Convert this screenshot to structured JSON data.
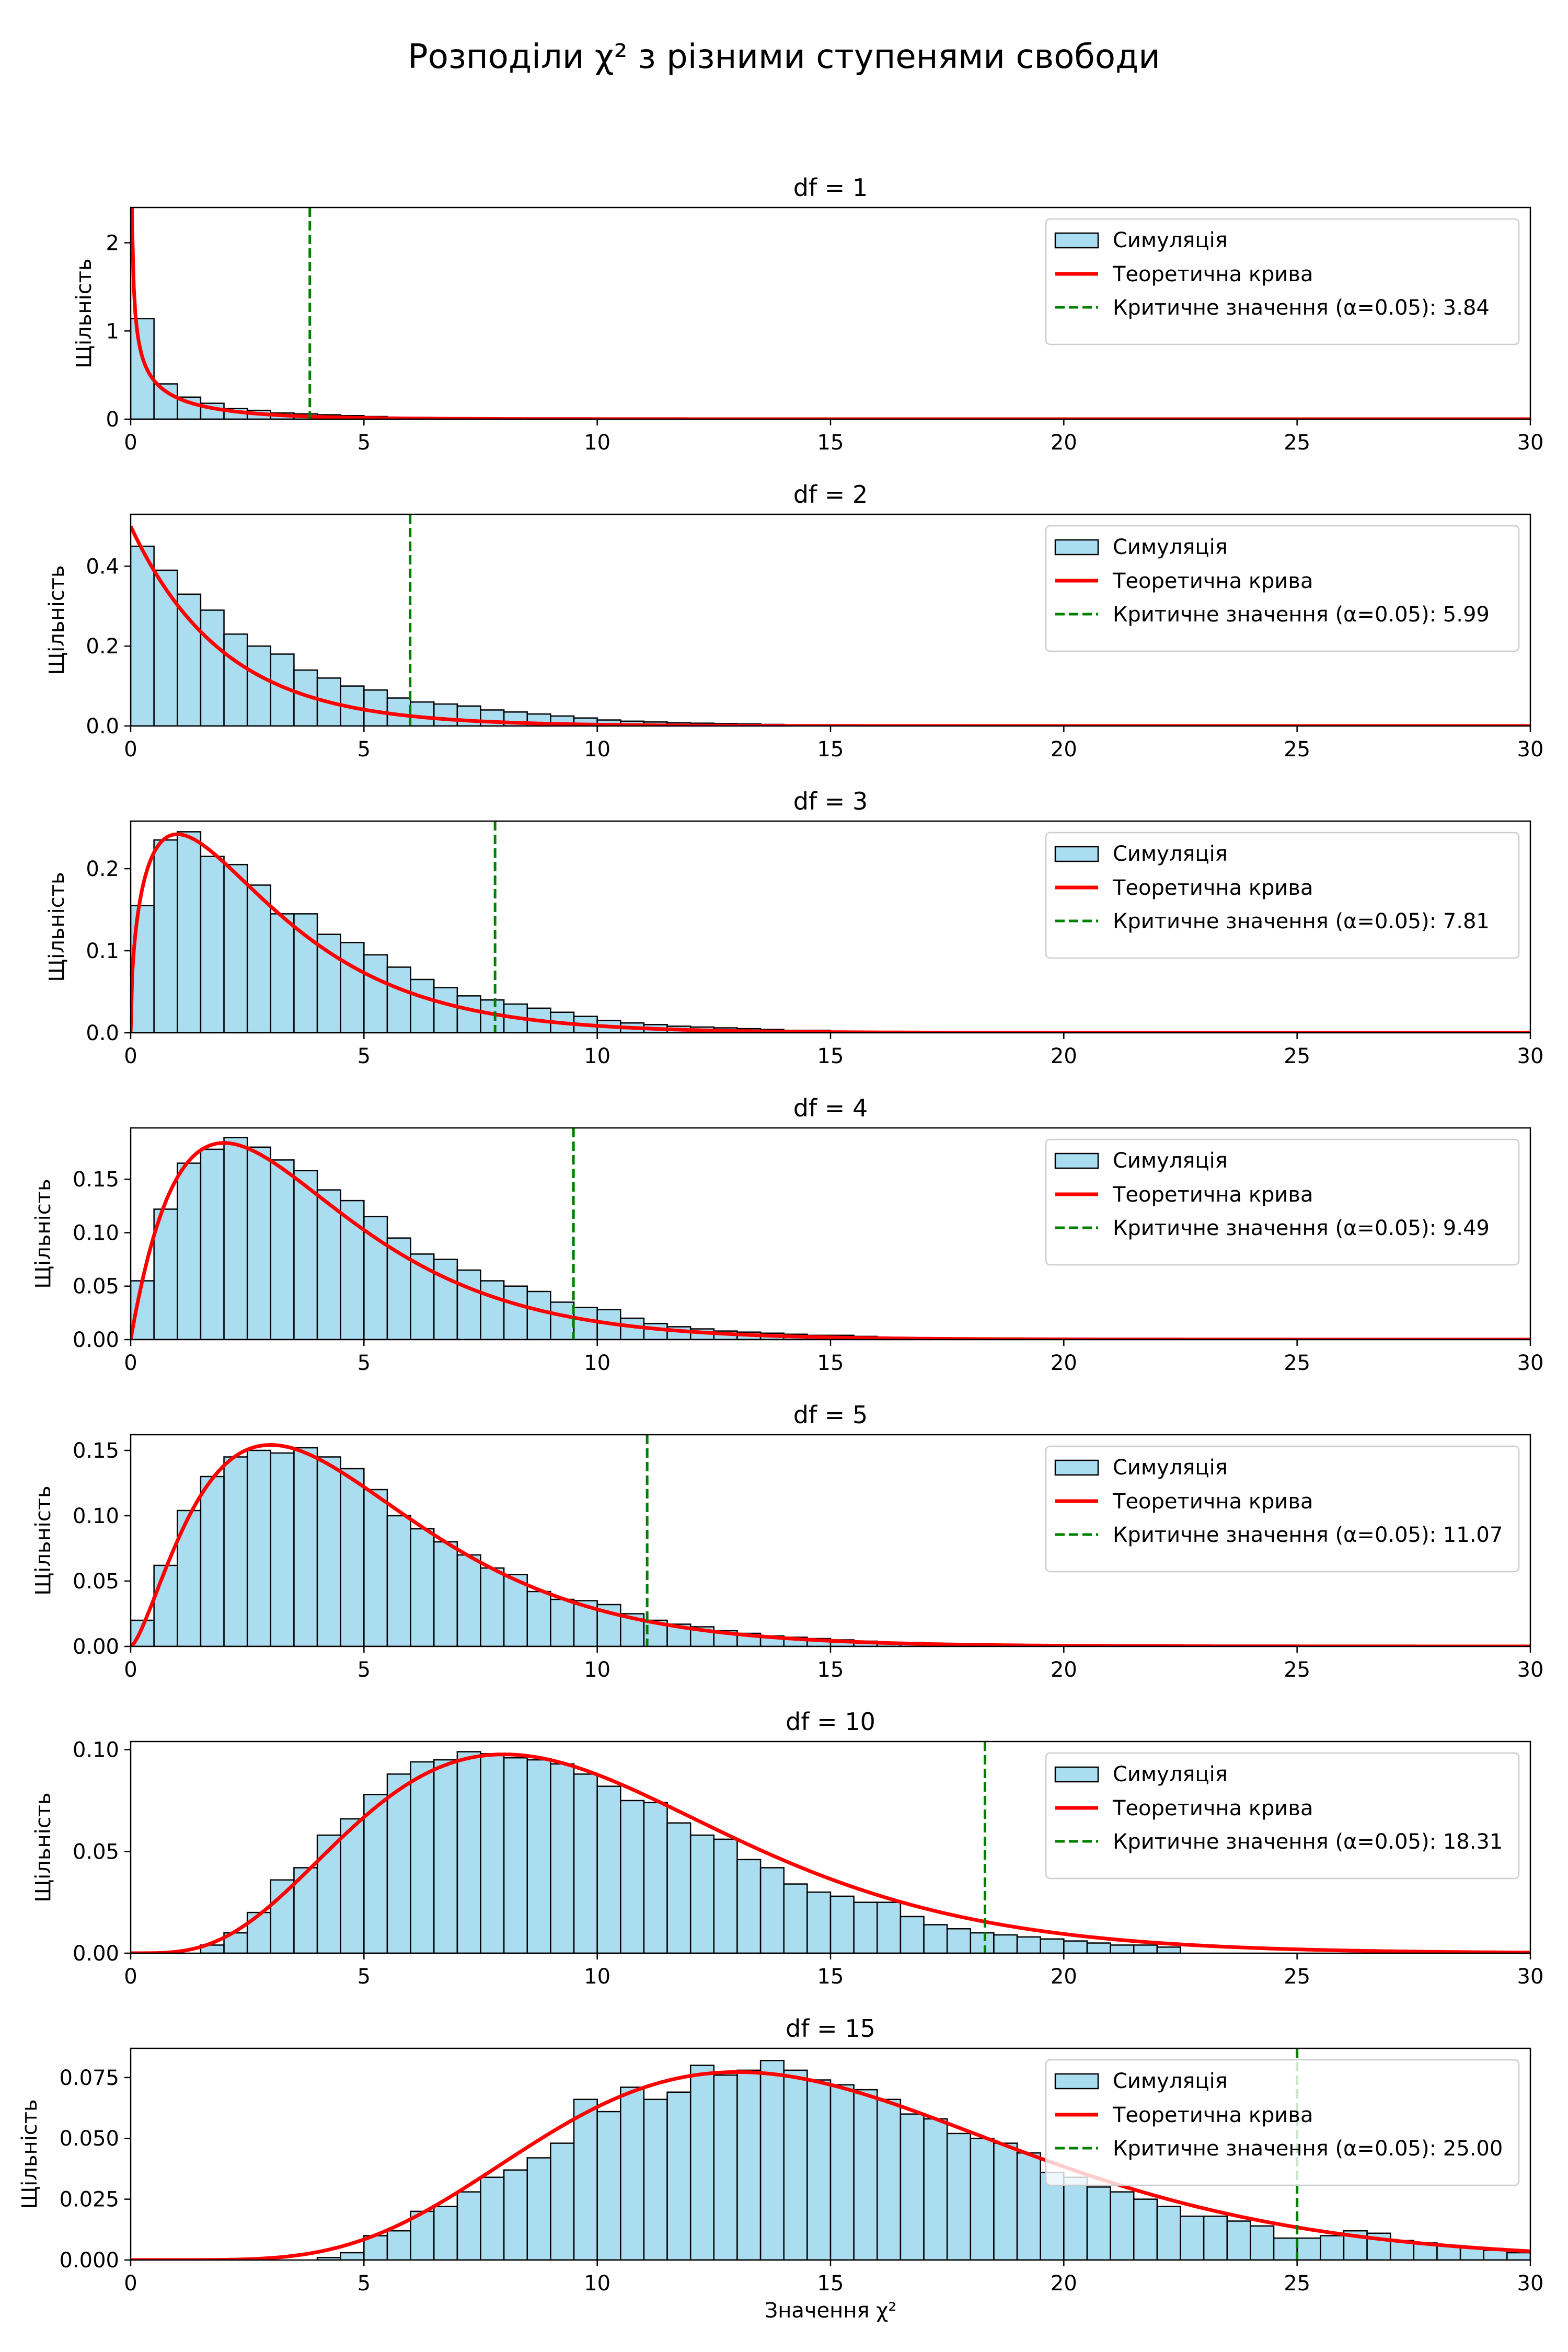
{
  "figure": {
    "title": "Розподіли χ² з різними ступенями свободи"
  },
  "colors": {
    "hist_fill": "#87ceeb",
    "hist_edge": "#000000",
    "pdf_line": "#ff0000",
    "critical_line": "#008000"
  },
  "legend_labels": {
    "simulation": "Симуляція",
    "theory": "Теоретична крива",
    "critical_prefix": "Критичне значення (α=0.05): "
  },
  "chart_data": [
    {
      "type": "bar",
      "title": "df = 1",
      "df": 1,
      "xlabel": "",
      "ylabel": "Щільність",
      "xlim": [
        0,
        30
      ],
      "ylim": [
        0,
        2.4
      ],
      "x_ticks": [
        0,
        5,
        10,
        15,
        20,
        25,
        30
      ],
      "y_ticks": [
        "0",
        "1",
        "2"
      ],
      "y_tick_values": [
        0,
        1,
        2
      ],
      "critical_value": 3.84,
      "critical_label": "3.84",
      "legend_position": "top-right",
      "grid": false,
      "bin_width": 0.5,
      "hist_values": [
        1.14,
        0.4,
        0.25,
        0.18,
        0.12,
        0.1,
        0.07,
        0.06,
        0.05,
        0.04,
        0.03,
        0.02,
        0.02,
        0.015,
        0.01,
        0.01,
        0.01,
        0.005,
        0.005,
        0.004
      ]
    },
    {
      "type": "bar",
      "title": "df = 2",
      "df": 2,
      "xlabel": "",
      "ylabel": "Щільність",
      "xlim": [
        0,
        30
      ],
      "ylim": [
        0,
        0.53
      ],
      "x_ticks": [
        0,
        5,
        10,
        15,
        20,
        25,
        30
      ],
      "y_ticks": [
        "0.0",
        "0.2",
        "0.4"
      ],
      "y_tick_values": [
        0,
        0.2,
        0.4
      ],
      "critical_value": 5.99,
      "critical_label": "5.99",
      "legend_position": "top-right",
      "grid": false,
      "bin_width": 0.5,
      "hist_values": [
        0.45,
        0.39,
        0.33,
        0.29,
        0.23,
        0.2,
        0.18,
        0.14,
        0.12,
        0.1,
        0.09,
        0.07,
        0.06,
        0.055,
        0.05,
        0.04,
        0.035,
        0.03,
        0.025,
        0.02,
        0.015,
        0.012,
        0.01,
        0.008,
        0.007,
        0.006,
        0.005,
        0.004
      ]
    },
    {
      "type": "bar",
      "title": "df = 3",
      "df": 3,
      "xlabel": "",
      "ylabel": "Щільність",
      "xlim": [
        0,
        30
      ],
      "ylim": [
        0,
        0.258
      ],
      "x_ticks": [
        0,
        5,
        10,
        15,
        20,
        25,
        30
      ],
      "y_ticks": [
        "0.0",
        "0.1",
        "0.2"
      ],
      "y_tick_values": [
        0,
        0.1,
        0.2
      ],
      "critical_value": 7.81,
      "critical_label": "7.81",
      "legend_position": "top-right",
      "grid": false,
      "bin_width": 0.5,
      "hist_values": [
        0.155,
        0.235,
        0.245,
        0.215,
        0.205,
        0.18,
        0.145,
        0.145,
        0.12,
        0.11,
        0.095,
        0.08,
        0.065,
        0.055,
        0.045,
        0.04,
        0.035,
        0.03,
        0.025,
        0.02,
        0.015,
        0.012,
        0.01,
        0.008,
        0.007,
        0.006,
        0.005,
        0.004,
        0.003,
        0.003
      ]
    },
    {
      "type": "bar",
      "title": "df = 4",
      "df": 4,
      "xlabel": "",
      "ylabel": "Щільність",
      "xlim": [
        0,
        30
      ],
      "ylim": [
        0,
        0.198
      ],
      "x_ticks": [
        0,
        5,
        10,
        15,
        20,
        25,
        30
      ],
      "y_ticks": [
        "0.00",
        "0.05",
        "0.10",
        "0.15"
      ],
      "y_tick_values": [
        0,
        0.05,
        0.1,
        0.15
      ],
      "critical_value": 9.49,
      "critical_label": "9.49",
      "legend_position": "top-right",
      "grid": false,
      "bin_width": 0.5,
      "hist_values": [
        0.055,
        0.122,
        0.165,
        0.178,
        0.189,
        0.18,
        0.168,
        0.158,
        0.14,
        0.13,
        0.115,
        0.095,
        0.08,
        0.075,
        0.065,
        0.055,
        0.05,
        0.045,
        0.035,
        0.03,
        0.028,
        0.02,
        0.015,
        0.012,
        0.01,
        0.008,
        0.007,
        0.006,
        0.005,
        0.004,
        0.004,
        0.003
      ]
    },
    {
      "type": "bar",
      "title": "df = 5",
      "df": 5,
      "xlabel": "",
      "ylabel": "Щільність",
      "xlim": [
        0,
        30
      ],
      "ylim": [
        0,
        0.162
      ],
      "x_ticks": [
        0,
        5,
        10,
        15,
        20,
        25,
        30
      ],
      "y_ticks": [
        "0.00",
        "0.05",
        "0.10",
        "0.15"
      ],
      "y_tick_values": [
        0,
        0.05,
        0.1,
        0.15
      ],
      "critical_value": 11.07,
      "critical_label": "11.07",
      "legend_position": "top-right",
      "grid": false,
      "bin_width": 0.5,
      "hist_values": [
        0.02,
        0.062,
        0.104,
        0.13,
        0.145,
        0.15,
        0.148,
        0.152,
        0.145,
        0.136,
        0.12,
        0.1,
        0.09,
        0.08,
        0.07,
        0.06,
        0.055,
        0.042,
        0.036,
        0.035,
        0.032,
        0.025,
        0.02,
        0.017,
        0.015,
        0.012,
        0.01,
        0.008,
        0.007,
        0.006,
        0.005,
        0.004,
        0.003,
        0.003,
        0.002
      ]
    },
    {
      "type": "bar",
      "title": "df = 10",
      "df": 10,
      "xlabel": "",
      "ylabel": "Щільність",
      "xlim": [
        0,
        30
      ],
      "ylim": [
        0,
        0.104
      ],
      "x_ticks": [
        0,
        5,
        10,
        15,
        20,
        25,
        30
      ],
      "y_ticks": [
        "0.00",
        "0.05",
        "0.10"
      ],
      "y_tick_values": [
        0,
        0.05,
        0.1
      ],
      "critical_value": 18.31,
      "critical_label": "18.31",
      "legend_position": "top-right",
      "grid": false,
      "bin_width": 0.5,
      "hist_values": [
        0.0,
        0.0,
        0.0,
        0.004,
        0.01,
        0.02,
        0.036,
        0.042,
        0.058,
        0.066,
        0.078,
        0.088,
        0.094,
        0.095,
        0.099,
        0.098,
        0.096,
        0.095,
        0.093,
        0.088,
        0.082,
        0.075,
        0.074,
        0.064,
        0.058,
        0.056,
        0.046,
        0.042,
        0.034,
        0.03,
        0.028,
        0.025,
        0.025,
        0.018,
        0.014,
        0.012,
        0.01,
        0.009,
        0.008,
        0.007,
        0.006,
        0.005,
        0.004,
        0.004,
        0.003
      ]
    },
    {
      "type": "bar",
      "title": "df = 15",
      "df": 15,
      "xlabel": "Значення χ²",
      "ylabel": "Щільність",
      "xlim": [
        0,
        30
      ],
      "ylim": [
        0,
        0.087
      ],
      "x_ticks": [
        0,
        5,
        10,
        15,
        20,
        25,
        30
      ],
      "y_ticks": [
        "0.000",
        "0.025",
        "0.050",
        "0.075"
      ],
      "y_tick_values": [
        0,
        0.025,
        0.05,
        0.075
      ],
      "critical_value": 25.0,
      "critical_label": "25.00",
      "legend_position": "top-right",
      "grid": false,
      "bin_width": 0.5,
      "hist_values": [
        0.0,
        0.0,
        0.0,
        0.0,
        0.0,
        0.0,
        0.0,
        0.0,
        0.001,
        0.003,
        0.01,
        0.012,
        0.02,
        0.022,
        0.028,
        0.034,
        0.037,
        0.042,
        0.048,
        0.066,
        0.061,
        0.071,
        0.066,
        0.069,
        0.08,
        0.076,
        0.078,
        0.082,
        0.078,
        0.074,
        0.072,
        0.07,
        0.066,
        0.06,
        0.058,
        0.052,
        0.05,
        0.048,
        0.044,
        0.036,
        0.034,
        0.03,
        0.028,
        0.025,
        0.022,
        0.018,
        0.018,
        0.016,
        0.014,
        0.009,
        0.009,
        0.01,
        0.012,
        0.011,
        0.008,
        0.007,
        0.006,
        0.005,
        0.004,
        0.003
      ]
    }
  ]
}
